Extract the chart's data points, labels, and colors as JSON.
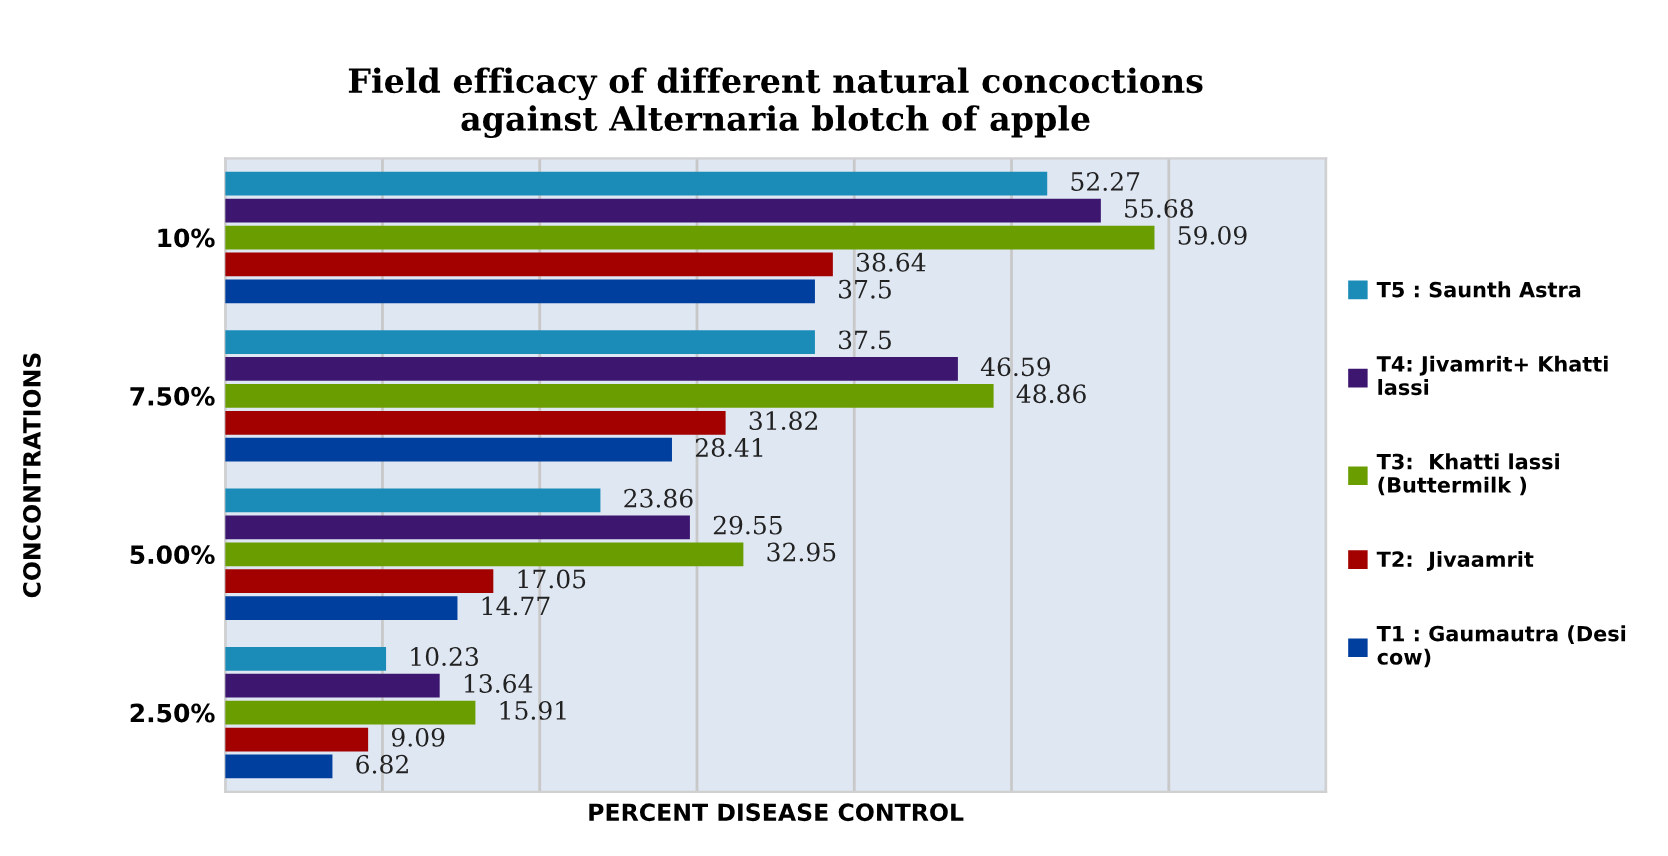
{
  "chart_data": {
    "type": "bar",
    "orientation": "horizontal",
    "title": "Field efficacy of different natural concoctions\nagainst Alternaria blotch of apple",
    "xlabel": "PERCENT DISEASE CONTROL",
    "ylabel": "CONCONTRATIONS",
    "categories": [
      "10%",
      "7.50%",
      "5.00%",
      "2.50%"
    ],
    "series": [
      {
        "name": "T5 : Saunth Astra",
        "color": "#1b8cb8",
        "values": [
          52.27,
          37.5,
          23.86,
          10.23
        ]
      },
      {
        "name": "T4: Jivamrit+ Khatti\nlassi",
        "color": "#3d1670",
        "values": [
          55.68,
          46.59,
          29.55,
          13.64
        ]
      },
      {
        "name": "T3:  Khatti lassi\n(Buttermilk )",
        "color": "#6a9e00",
        "values": [
          59.09,
          48.86,
          32.95,
          15.91
        ]
      },
      {
        "name": "T2:  Jivaamrit",
        "color": "#a30000",
        "values": [
          38.64,
          31.82,
          17.05,
          9.09
        ]
      },
      {
        "name": "T1 : Gaumautra (Desi\ncow)",
        "color": "#003f9e",
        "values": [
          37.5,
          28.41,
          14.77,
          6.82
        ]
      }
    ],
    "xlim": [
      0,
      70
    ],
    "xticks": [
      {
        "value": 0,
        "label": null
      },
      {
        "value": 10,
        "label": null
      },
      {
        "value": 20,
        "label": null
      },
      {
        "value": 30,
        "label": null
      },
      {
        "value": 40,
        "label": null
      },
      {
        "value": 50,
        "label": null
      },
      {
        "value": 60,
        "label": null
      },
      {
        "value": 70,
        "label": null
      }
    ],
    "grid": "x",
    "legend": "right",
    "tick_labels": "y",
    "data_labels": true
  }
}
